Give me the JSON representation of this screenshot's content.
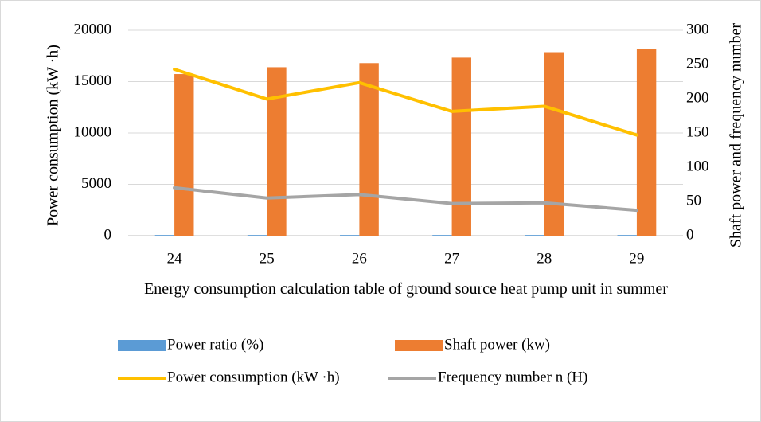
{
  "chart_data": {
    "type": "bar",
    "categories": [
      "24",
      "25",
      "26",
      "27",
      "28",
      "29"
    ],
    "y_label": "Power consumption (kW ·h)",
    "y2_label": "Shaft power and frequency number",
    "x_label": "Energy consumption calculation table of ground source heat pump unit in summer",
    "ylim": [
      0,
      20000
    ],
    "yticks": [
      0,
      5000,
      10000,
      15000,
      20000
    ],
    "y2lim": [
      0,
      300
    ],
    "y2ticks": [
      0,
      50,
      100,
      150,
      200,
      250,
      300
    ],
    "grid": true,
    "legend": "bottom",
    "series": [
      {
        "name": "Power ratio (%)",
        "type": "bar",
        "axis": "y2",
        "color": "#5b9bd5",
        "values": [
          1,
          1,
          1,
          1,
          1,
          1
        ]
      },
      {
        "name": "Shaft power (kw)",
        "type": "bar",
        "axis": "y2",
        "color": "#ed7d31",
        "values": [
          236,
          246,
          252,
          260,
          268,
          273
        ]
      },
      {
        "name": "Power consumption (kW ·h)",
        "type": "line",
        "color": "#ffc000",
        "values": [
          16200,
          13300,
          14900,
          12100,
          12600,
          9800
        ]
      },
      {
        "name": "Frequency number n (H)",
        "type": "line",
        "axis": "y2",
        "color": "#a5a5a5",
        "values": [
          70,
          55,
          60,
          47,
          48,
          37
        ]
      }
    ]
  }
}
